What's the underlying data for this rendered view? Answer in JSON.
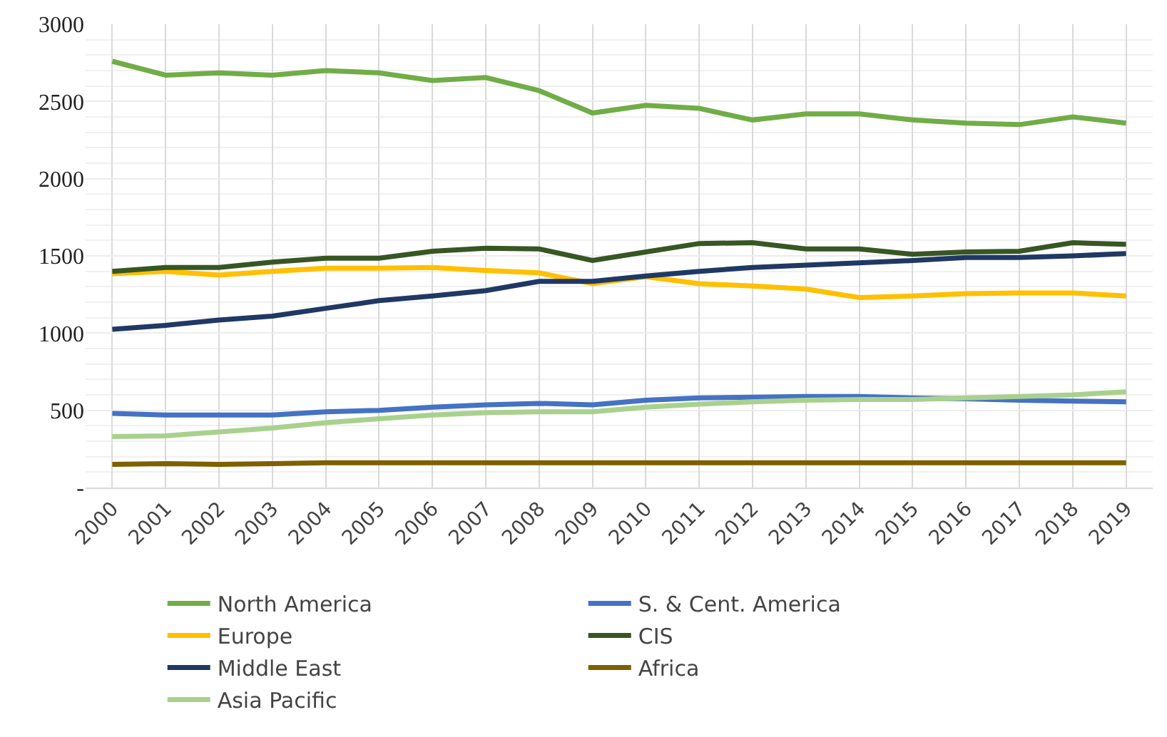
{
  "chart_data": {
    "type": "line",
    "categories": [
      "2000",
      "2001",
      "2002",
      "2003",
      "2004",
      "2005",
      "2006",
      "2007",
      "2008",
      "2009",
      "2010",
      "2011",
      "2012",
      "2013",
      "2014",
      "2015",
      "2016",
      "2017",
      "2018",
      "2019"
    ],
    "series": [
      {
        "name": "North America",
        "color": "#70ad47",
        "values": [
          2760,
          2670,
          2685,
          2670,
          2700,
          2685,
          2635,
          2655,
          2570,
          2425,
          2475,
          2455,
          2380,
          2420,
          2420,
          2380,
          2360,
          2350,
          2400,
          2360
        ]
      },
      {
        "name": "S. & Cent. America",
        "color": "#4472c4",
        "values": [
          480,
          470,
          470,
          470,
          490,
          500,
          520,
          535,
          545,
          535,
          565,
          580,
          585,
          590,
          590,
          580,
          575,
          565,
          560,
          555
        ]
      },
      {
        "name": "Europe",
        "color": "#ffc000",
        "values": [
          1385,
          1400,
          1375,
          1400,
          1420,
          1420,
          1425,
          1405,
          1390,
          1320,
          1365,
          1320,
          1305,
          1285,
          1230,
          1240,
          1255,
          1260,
          1260,
          1240
        ]
      },
      {
        "name": "CIS",
        "color": "#375623",
        "values": [
          1400,
          1425,
          1425,
          1460,
          1485,
          1485,
          1530,
          1550,
          1545,
          1470,
          1525,
          1580,
          1585,
          1545,
          1545,
          1510,
          1525,
          1530,
          1585,
          1575
        ]
      },
      {
        "name": "Middle East",
        "color": "#203864",
        "values": [
          1025,
          1050,
          1085,
          1110,
          1160,
          1210,
          1240,
          1275,
          1335,
          1335,
          1370,
          1400,
          1425,
          1440,
          1455,
          1470,
          1490,
          1490,
          1500,
          1515
        ]
      },
      {
        "name": "Africa",
        "color": "#7f6000",
        "values": [
          150,
          155,
          150,
          155,
          160,
          160,
          160,
          160,
          160,
          160,
          160,
          160,
          160,
          160,
          160,
          160,
          160,
          160,
          160,
          160
        ]
      },
      {
        "name": "Asia Pacific",
        "color": "#a9d18e",
        "values": [
          330,
          335,
          360,
          385,
          420,
          445,
          470,
          485,
          490,
          490,
          520,
          540,
          555,
          565,
          570,
          570,
          580,
          590,
          600,
          620
        ]
      }
    ],
    "ylim": [
      0,
      3000
    ],
    "yticks": [
      {
        "value": 0,
        "label": "-"
      },
      500,
      1000,
      1500,
      2000,
      2500,
      3000
    ],
    "grid": true,
    "legend": "bottom",
    "marker": "none",
    "line_style": "solid"
  }
}
